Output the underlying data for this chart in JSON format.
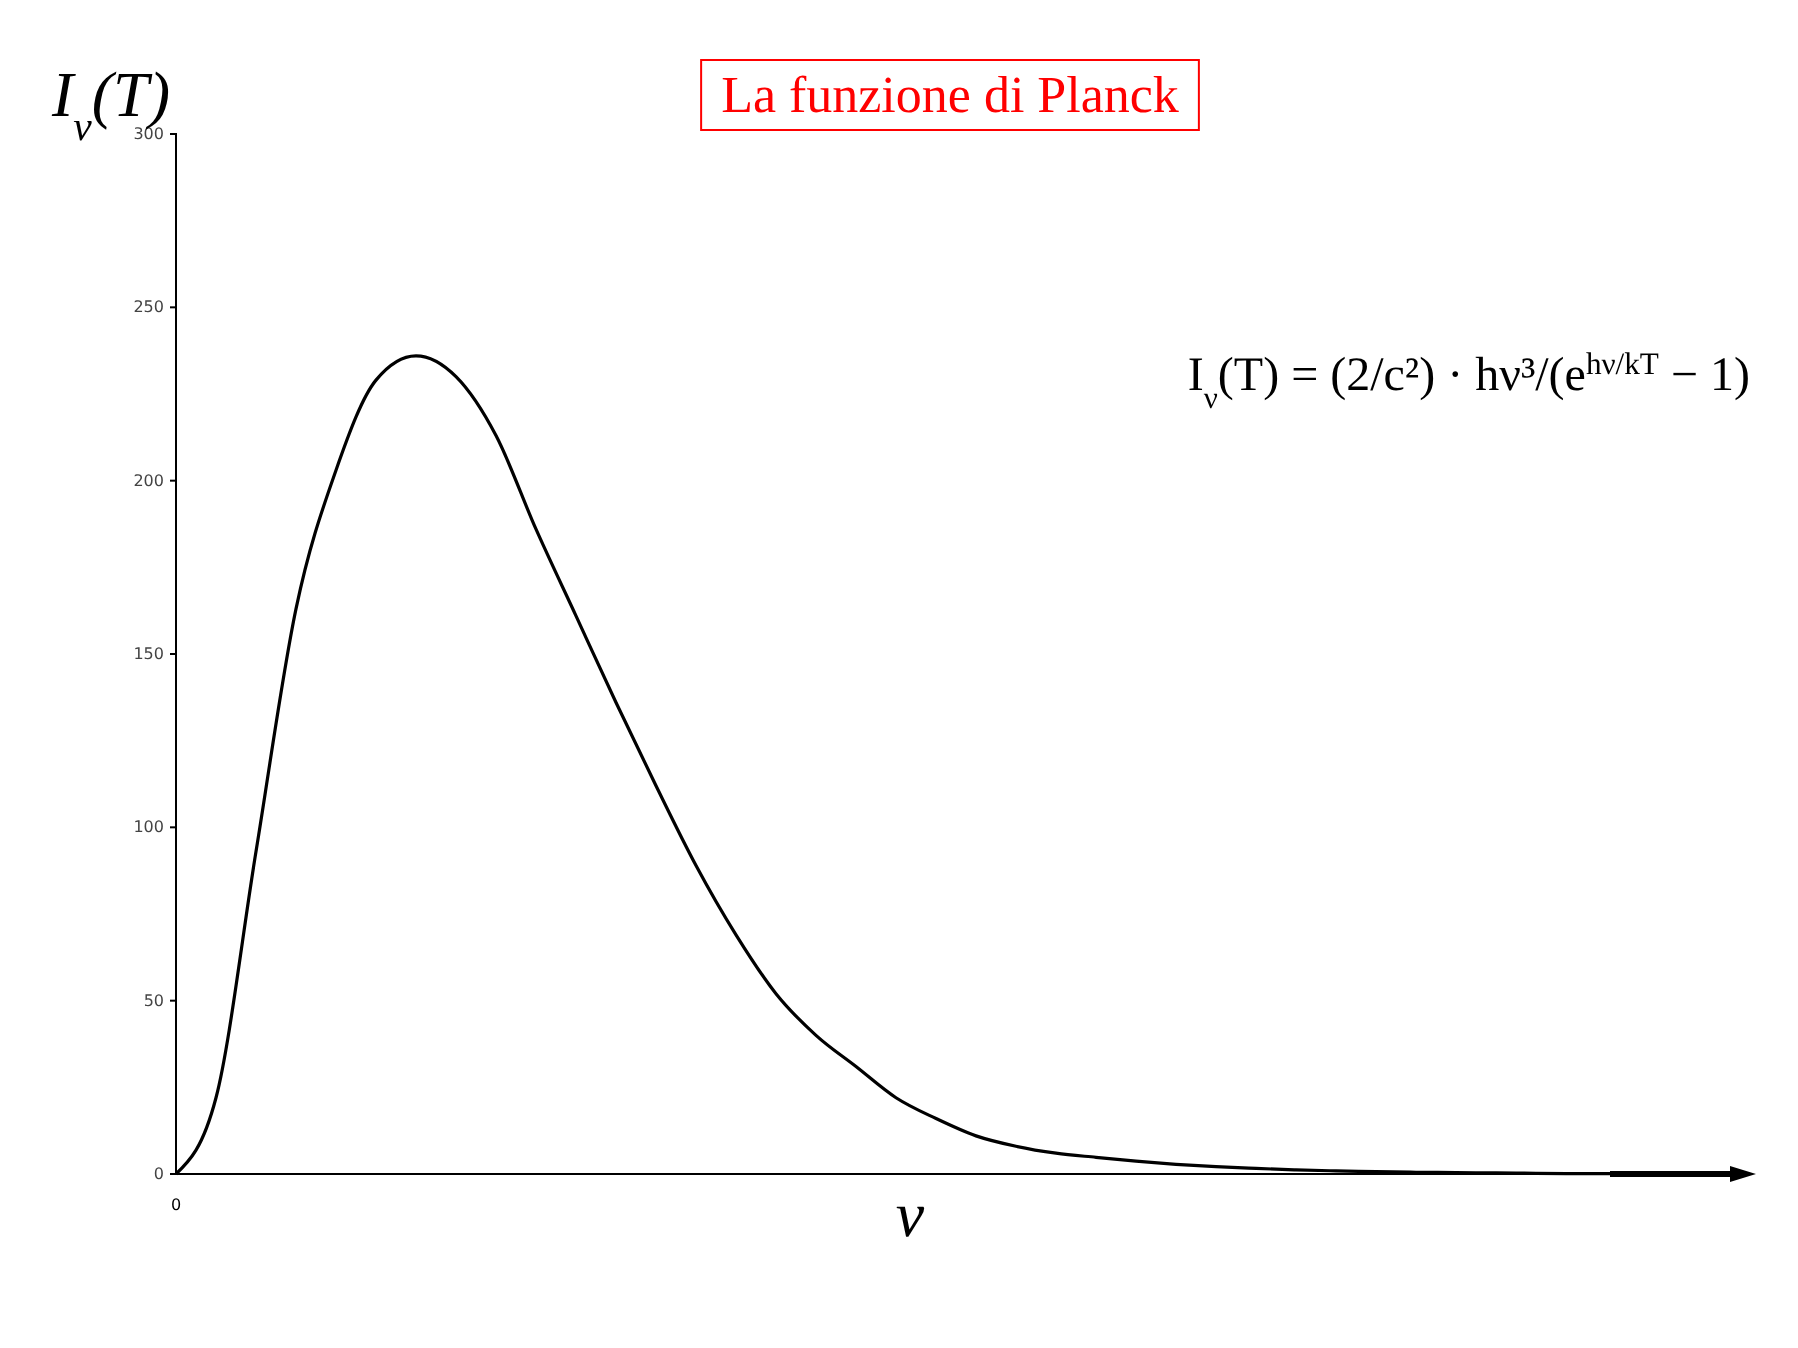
{
  "chart_data": {
    "type": "line",
    "title": "La funzione di Planck",
    "xlabel": "ν",
    "ylabel": "I$_{ν}$(T)",
    "annotations": [
      "I$_{ν}$(T) = (2/c²) · hν³/(e$^{hν/kT}$ − 1)"
    ],
    "categories": [
      "0",
      null,
      null,
      null,
      null,
      null,
      null,
      null,
      null,
      null,
      null,
      null,
      null,
      null,
      null,
      null,
      null,
      null,
      null,
      null,
      null,
      null,
      null,
      null,
      null,
      null,
      null,
      null,
      null,
      null,
      null,
      null,
      null,
      null,
      null,
      null,
      null
    ],
    "series": [
      {
        "color": "#000000",
        "values": [
          0,
          22,
          93,
          163,
          203,
          229,
          236,
          230,
          213,
          186,
          161,
          136,
          112,
          89,
          69,
          52,
          40,
          31,
          22,
          16,
          11,
          8,
          6,
          4.8,
          3.7,
          2.8,
          2.1,
          1.6,
          1.2,
          0.9,
          0.7,
          0.5,
          0.4,
          0.3,
          0.2,
          0.1,
          0.1
        ]
      }
    ],
    "ylim": [
      0,
      300
    ],
    "yticks": [
      0,
      50,
      100,
      150,
      200,
      250,
      300
    ],
    "grid": false,
    "marker": "none",
    "line_style": "solid"
  }
}
